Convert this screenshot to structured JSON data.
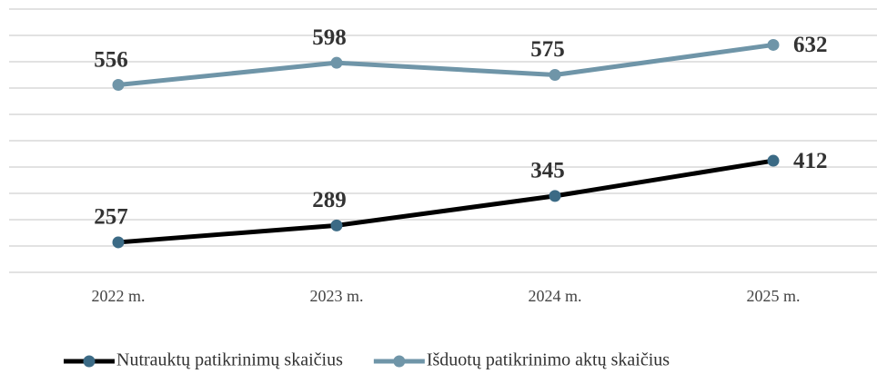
{
  "chart_data": {
    "type": "line",
    "categories": [
      "2022 m.",
      "2023 m.",
      "2024 m.",
      "2025 m."
    ],
    "series": [
      {
        "name": "Nutrauktų patikrinimų skaičius",
        "color": "#000000",
        "marker_color": "#3b6a85",
        "values": [
          257,
          289,
          345,
          412
        ]
      },
      {
        "name": "Išduotų patikrinimo aktų skaičius",
        "color": "#6f95a8",
        "marker_color": "#6f95a8",
        "values": [
          556,
          598,
          575,
          632
        ]
      }
    ],
    "ylim": [
      200,
      700
    ],
    "yticks": [
      200,
      250,
      300,
      350,
      400,
      450,
      500,
      550,
      600,
      650,
      700
    ],
    "grid": true,
    "legend": "bottom"
  }
}
